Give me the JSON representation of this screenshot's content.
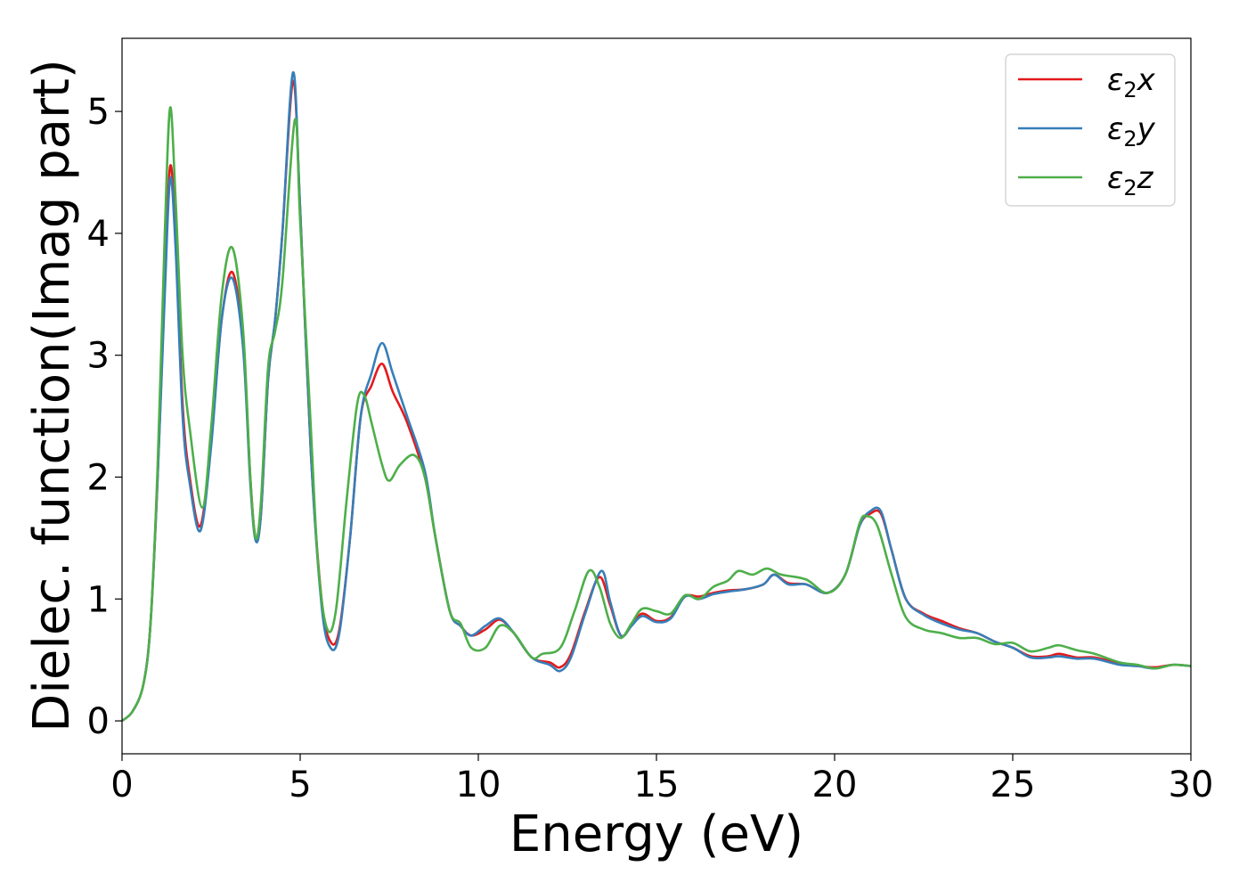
{
  "chart_data": {
    "type": "line",
    "xlabel": "Energy (eV)",
    "ylabel": "Dielec. function(Imag part)",
    "xlim": [
      0,
      30
    ],
    "ylim": [
      -0.27,
      5.6
    ],
    "xticks": [
      0,
      5,
      10,
      15,
      20,
      25,
      30
    ],
    "yticks": [
      0,
      1,
      2,
      3,
      4,
      5
    ],
    "grid": false,
    "legend_position": "top-right",
    "series": [
      {
        "name": "ε2x",
        "symbol": "ε",
        "subscript": "2",
        "suffix": "x",
        "color": "#e41a1c",
        "points": [
          [
            0,
            0
          ],
          [
            0.3,
            0.08
          ],
          [
            0.6,
            0.3
          ],
          [
            0.8,
            0.8
          ],
          [
            1.0,
            2.0
          ],
          [
            1.2,
            3.6
          ],
          [
            1.35,
            4.55
          ],
          [
            1.5,
            4.0
          ],
          [
            1.7,
            2.6
          ],
          [
            1.9,
            2.0
          ],
          [
            2.2,
            1.6
          ],
          [
            2.5,
            2.3
          ],
          [
            2.8,
            3.3
          ],
          [
            3.1,
            3.68
          ],
          [
            3.4,
            3.1
          ],
          [
            3.6,
            2.0
          ],
          [
            3.75,
            1.5
          ],
          [
            3.9,
            1.7
          ],
          [
            4.1,
            2.8
          ],
          [
            4.3,
            3.3
          ],
          [
            4.5,
            4.0
          ],
          [
            4.8,
            5.25
          ],
          [
            5.0,
            4.2
          ],
          [
            5.3,
            2.2
          ],
          [
            5.6,
            1.0
          ],
          [
            5.85,
            0.65
          ],
          [
            6.1,
            0.75
          ],
          [
            6.4,
            1.5
          ],
          [
            6.7,
            2.5
          ],
          [
            7.0,
            2.75
          ],
          [
            7.3,
            2.93
          ],
          [
            7.6,
            2.7
          ],
          [
            8.0,
            2.45
          ],
          [
            8.5,
            2.0
          ],
          [
            8.8,
            1.5
          ],
          [
            9.2,
            0.9
          ],
          [
            9.5,
            0.78
          ],
          [
            9.8,
            0.7
          ],
          [
            10.2,
            0.75
          ],
          [
            10.6,
            0.83
          ],
          [
            11.0,
            0.72
          ],
          [
            11.5,
            0.52
          ],
          [
            12.0,
            0.48
          ],
          [
            12.3,
            0.44
          ],
          [
            12.6,
            0.55
          ],
          [
            13.0,
            0.9
          ],
          [
            13.4,
            1.18
          ],
          [
            13.7,
            0.95
          ],
          [
            14.0,
            0.7
          ],
          [
            14.3,
            0.78
          ],
          [
            14.6,
            0.88
          ],
          [
            15.0,
            0.82
          ],
          [
            15.4,
            0.85
          ],
          [
            15.8,
            1.02
          ],
          [
            16.2,
            1.02
          ],
          [
            16.6,
            1.05
          ],
          [
            17.0,
            1.07
          ],
          [
            17.5,
            1.08
          ],
          [
            18.0,
            1.12
          ],
          [
            18.3,
            1.2
          ],
          [
            18.7,
            1.13
          ],
          [
            19.2,
            1.12
          ],
          [
            19.8,
            1.05
          ],
          [
            20.3,
            1.2
          ],
          [
            20.7,
            1.6
          ],
          [
            21.0,
            1.7
          ],
          [
            21.3,
            1.7
          ],
          [
            21.6,
            1.4
          ],
          [
            22.0,
            1.0
          ],
          [
            22.5,
            0.88
          ],
          [
            23.0,
            0.82
          ],
          [
            23.5,
            0.76
          ],
          [
            24.0,
            0.72
          ],
          [
            24.5,
            0.65
          ],
          [
            25.0,
            0.6
          ],
          [
            25.5,
            0.53
          ],
          [
            26.0,
            0.53
          ],
          [
            26.3,
            0.55
          ],
          [
            26.8,
            0.52
          ],
          [
            27.3,
            0.52
          ],
          [
            28.0,
            0.47
          ],
          [
            28.5,
            0.45
          ],
          [
            29.0,
            0.44
          ],
          [
            29.5,
            0.46
          ],
          [
            30.0,
            0.45
          ]
        ]
      },
      {
        "name": "ε2y",
        "symbol": "ε",
        "subscript": "2",
        "suffix": "y",
        "color": "#377eb8",
        "points": [
          [
            0,
            0
          ],
          [
            0.3,
            0.08
          ],
          [
            0.6,
            0.3
          ],
          [
            0.8,
            0.8
          ],
          [
            1.0,
            2.0
          ],
          [
            1.2,
            3.5
          ],
          [
            1.35,
            4.45
          ],
          [
            1.5,
            3.9
          ],
          [
            1.7,
            2.5
          ],
          [
            1.9,
            1.95
          ],
          [
            2.2,
            1.56
          ],
          [
            2.5,
            2.25
          ],
          [
            2.8,
            3.3
          ],
          [
            3.1,
            3.63
          ],
          [
            3.4,
            3.05
          ],
          [
            3.6,
            1.95
          ],
          [
            3.75,
            1.48
          ],
          [
            3.9,
            1.7
          ],
          [
            4.1,
            2.8
          ],
          [
            4.3,
            3.3
          ],
          [
            4.5,
            4.0
          ],
          [
            4.8,
            5.32
          ],
          [
            5.0,
            4.2
          ],
          [
            5.3,
            2.2
          ],
          [
            5.6,
            0.95
          ],
          [
            5.85,
            0.6
          ],
          [
            6.1,
            0.72
          ],
          [
            6.4,
            1.5
          ],
          [
            6.7,
            2.5
          ],
          [
            7.0,
            2.85
          ],
          [
            7.3,
            3.1
          ],
          [
            7.6,
            2.85
          ],
          [
            8.0,
            2.5
          ],
          [
            8.5,
            2.05
          ],
          [
            8.8,
            1.5
          ],
          [
            9.2,
            0.9
          ],
          [
            9.5,
            0.78
          ],
          [
            9.8,
            0.7
          ],
          [
            10.2,
            0.78
          ],
          [
            10.6,
            0.84
          ],
          [
            11.0,
            0.72
          ],
          [
            11.5,
            0.52
          ],
          [
            12.0,
            0.46
          ],
          [
            12.3,
            0.41
          ],
          [
            12.6,
            0.52
          ],
          [
            13.0,
            0.88
          ],
          [
            13.45,
            1.23
          ],
          [
            13.7,
            0.98
          ],
          [
            14.0,
            0.7
          ],
          [
            14.3,
            0.78
          ],
          [
            14.6,
            0.86
          ],
          [
            15.0,
            0.81
          ],
          [
            15.4,
            0.84
          ],
          [
            15.8,
            1.02
          ],
          [
            16.2,
            1.0
          ],
          [
            16.6,
            1.04
          ],
          [
            17.0,
            1.06
          ],
          [
            17.5,
            1.08
          ],
          [
            18.0,
            1.12
          ],
          [
            18.3,
            1.2
          ],
          [
            18.7,
            1.12
          ],
          [
            19.2,
            1.12
          ],
          [
            19.8,
            1.05
          ],
          [
            20.3,
            1.2
          ],
          [
            20.7,
            1.6
          ],
          [
            21.0,
            1.72
          ],
          [
            21.3,
            1.72
          ],
          [
            21.6,
            1.4
          ],
          [
            22.0,
            1.0
          ],
          [
            22.5,
            0.87
          ],
          [
            23.0,
            0.8
          ],
          [
            23.5,
            0.75
          ],
          [
            24.0,
            0.72
          ],
          [
            24.5,
            0.65
          ],
          [
            25.0,
            0.6
          ],
          [
            25.5,
            0.52
          ],
          [
            26.0,
            0.52
          ],
          [
            26.3,
            0.53
          ],
          [
            26.8,
            0.51
          ],
          [
            27.3,
            0.51
          ],
          [
            28.0,
            0.46
          ],
          [
            28.5,
            0.45
          ],
          [
            29.0,
            0.43
          ],
          [
            29.5,
            0.46
          ],
          [
            30.0,
            0.45
          ]
        ]
      },
      {
        "name": "ε2z",
        "symbol": "ε",
        "subscript": "2",
        "suffix": "z",
        "color": "#4daf4a",
        "points": [
          [
            0,
            0
          ],
          [
            0.3,
            0.08
          ],
          [
            0.6,
            0.3
          ],
          [
            0.8,
            0.8
          ],
          [
            1.0,
            2.1
          ],
          [
            1.2,
            4.0
          ],
          [
            1.35,
            5.03
          ],
          [
            1.5,
            4.3
          ],
          [
            1.7,
            3.0
          ],
          [
            1.9,
            2.4
          ],
          [
            2.25,
            1.75
          ],
          [
            2.5,
            2.4
          ],
          [
            2.8,
            3.5
          ],
          [
            3.1,
            3.88
          ],
          [
            3.4,
            3.2
          ],
          [
            3.6,
            2.0
          ],
          [
            3.75,
            1.5
          ],
          [
            3.9,
            1.8
          ],
          [
            4.1,
            2.9
          ],
          [
            4.3,
            3.2
          ],
          [
            4.5,
            3.6
          ],
          [
            4.85,
            4.93
          ],
          [
            5.0,
            4.1
          ],
          [
            5.3,
            2.4
          ],
          [
            5.5,
            1.3
          ],
          [
            5.75,
            0.76
          ],
          [
            6.0,
            0.9
          ],
          [
            6.3,
            1.8
          ],
          [
            6.6,
            2.6
          ],
          [
            6.8,
            2.67
          ],
          [
            7.0,
            2.45
          ],
          [
            7.3,
            2.1
          ],
          [
            7.5,
            1.97
          ],
          [
            7.8,
            2.1
          ],
          [
            8.2,
            2.18
          ],
          [
            8.5,
            2.0
          ],
          [
            8.8,
            1.5
          ],
          [
            9.2,
            0.9
          ],
          [
            9.5,
            0.8
          ],
          [
            9.8,
            0.6
          ],
          [
            10.2,
            0.6
          ],
          [
            10.6,
            0.78
          ],
          [
            11.0,
            0.72
          ],
          [
            11.5,
            0.52
          ],
          [
            11.8,
            0.55
          ],
          [
            12.3,
            0.6
          ],
          [
            12.7,
            0.9
          ],
          [
            13.1,
            1.23
          ],
          [
            13.4,
            1.1
          ],
          [
            13.7,
            0.8
          ],
          [
            14.0,
            0.68
          ],
          [
            14.3,
            0.8
          ],
          [
            14.6,
            0.92
          ],
          [
            15.0,
            0.9
          ],
          [
            15.4,
            0.88
          ],
          [
            15.8,
            1.03
          ],
          [
            16.2,
            1.0
          ],
          [
            16.6,
            1.1
          ],
          [
            17.0,
            1.15
          ],
          [
            17.3,
            1.23
          ],
          [
            17.7,
            1.2
          ],
          [
            18.1,
            1.25
          ],
          [
            18.5,
            1.2
          ],
          [
            19.2,
            1.16
          ],
          [
            19.8,
            1.05
          ],
          [
            20.3,
            1.2
          ],
          [
            20.7,
            1.62
          ],
          [
            20.9,
            1.68
          ],
          [
            21.2,
            1.6
          ],
          [
            21.6,
            1.2
          ],
          [
            22.0,
            0.85
          ],
          [
            22.5,
            0.75
          ],
          [
            23.0,
            0.72
          ],
          [
            23.5,
            0.68
          ],
          [
            24.0,
            0.68
          ],
          [
            24.5,
            0.63
          ],
          [
            25.0,
            0.64
          ],
          [
            25.5,
            0.57
          ],
          [
            26.0,
            0.6
          ],
          [
            26.3,
            0.62
          ],
          [
            26.8,
            0.58
          ],
          [
            27.3,
            0.55
          ],
          [
            28.0,
            0.48
          ],
          [
            28.5,
            0.46
          ],
          [
            29.0,
            0.43
          ],
          [
            29.5,
            0.46
          ],
          [
            30.0,
            0.45
          ]
        ]
      }
    ]
  }
}
